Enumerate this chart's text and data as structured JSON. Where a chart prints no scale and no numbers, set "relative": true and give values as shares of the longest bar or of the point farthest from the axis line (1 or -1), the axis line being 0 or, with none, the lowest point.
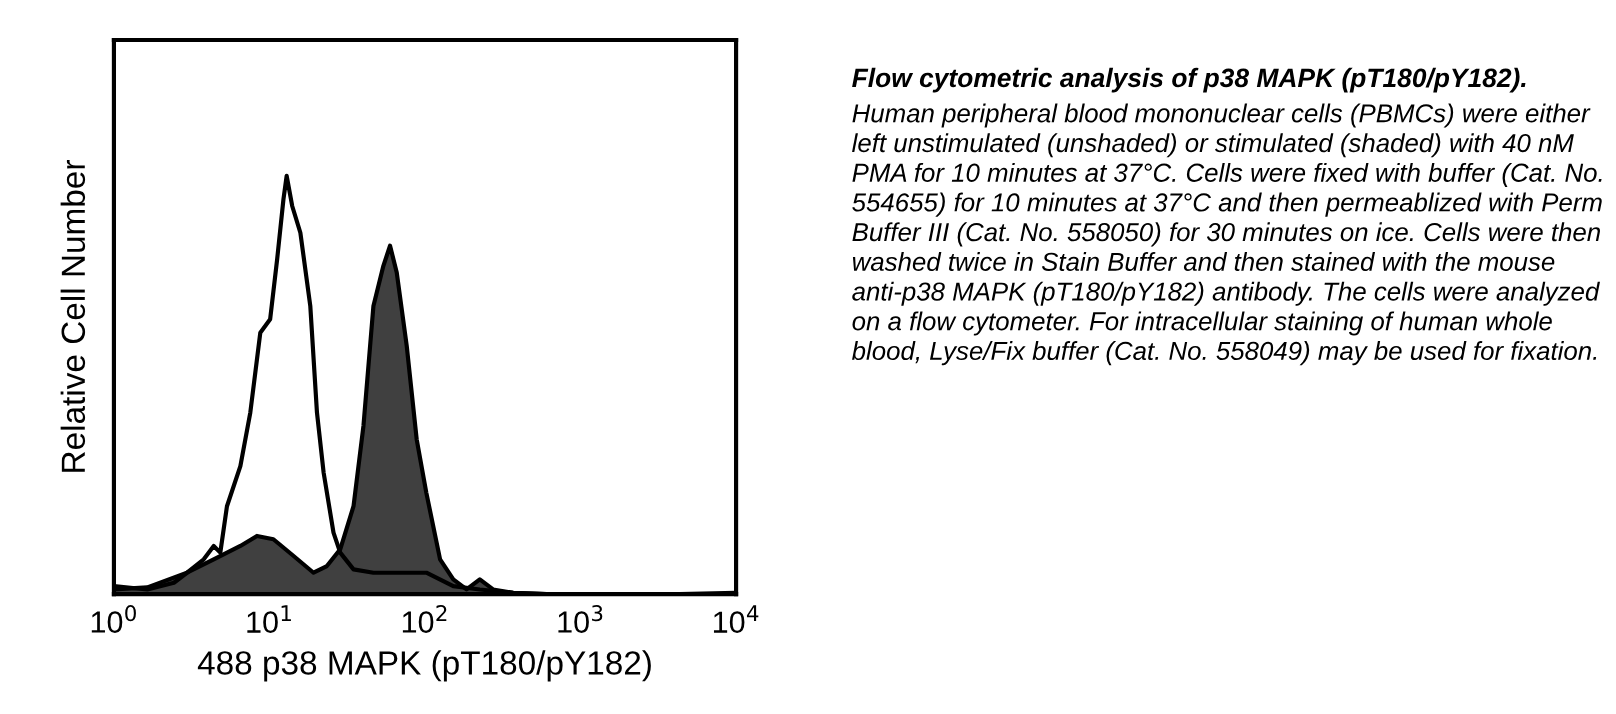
{
  "chart_data": {
    "type": "line",
    "relative": true,
    "log": "x",
    "xlabel": "488 p38 MAPK (pT180/pY182)",
    "ylabel": "Relative Cell Number",
    "title": "Flow cytometric analysis of p38 MAPK (pT180/pY182).",
    "annotations": [
      "Human peripheral blood mononuclear cells (PBMCs) were either left unstimulated (unshaded) or stimulated (shaded) with 40 nM PMA for 10 minutes at 37°C. Cells were fixed with buffer (Cat. No. 554655) for 10 minutes at 37°C and then permeablized with Perm Buffer III (Cat. No. 558050) for 30 minutes on ice. Cells were then washed twice in Stain Buffer and then stained with the mouse anti-p38 MAPK (pT180/pY182) antibody. The cells were analyzed on a flow cytometer. For intracellular staining of human whole blood, Lyse/Fix buffer (Cat. No. 558049) may be used for fixation."
    ],
    "xlim": [
      1,
      10000
    ],
    "xticks": [
      {
        "value": 1,
        "label": "10$^{0}$"
      },
      {
        "value": 10,
        "label": "10$^{1}$"
      },
      {
        "value": 100,
        "label": "10$^{2}$"
      },
      {
        "value": 1000,
        "label": "10$^{3}$"
      },
      {
        "value": 10000,
        "label": "10$^{4}$"
      }
    ],
    "grid": false,
    "legend": false,
    "series": [
      {
        "color": "#000000",
        "x": [
          1.0,
          1.64,
          2.43,
          2.95,
          3.78,
          4.38,
          4.83,
          5.33,
          6.5,
          7.53,
          8.73,
          10.1,
          11.2,
          12.3,
          12.9,
          14.0,
          15.8,
          18.3,
          20.2,
          22.3,
          25.8,
          28.5,
          34.7,
          46.6,
          69.1,
          102,
          152,
          225,
          369,
          604,
          4335,
          10000
        ],
        "values": [
          0.019,
          0.011,
          0.027,
          0.051,
          0.083,
          0.115,
          0.099,
          0.21,
          0.306,
          0.434,
          0.625,
          0.657,
          0.8,
          0.944,
          1,
          0.928,
          0.864,
          0.689,
          0.434,
          0.29,
          0.147,
          0.099,
          0.059,
          0.051,
          0.051,
          0.051,
          0.019,
          0.011,
          0.003,
          0,
          0,
          0.003
        ]
      },
      {
        "type": "area",
        "color": "#404040",
        "x": [
          1.0,
          1.64,
          2.95,
          4.38,
          6.5,
          8.31,
          10.6,
          14.3,
          19.2,
          23.4,
          28.5,
          34.7,
          40.2,
          46.6,
          54.0,
          59.6,
          65.8,
          76.3,
          88.4,
          102,
          125,
          152,
          185,
          225,
          274,
          369,
          604,
          10000
        ],
        "values": [
          0.011,
          0.016,
          0.051,
          0.083,
          0.115,
          0.139,
          0.131,
          0.091,
          0.051,
          0.067,
          0.107,
          0.21,
          0.402,
          0.689,
          0.785,
          0.833,
          0.769,
          0.593,
          0.37,
          0.242,
          0.083,
          0.035,
          0.011,
          0.035,
          0.011,
          0.003,
          0,
          0
        ]
      }
    ]
  }
}
